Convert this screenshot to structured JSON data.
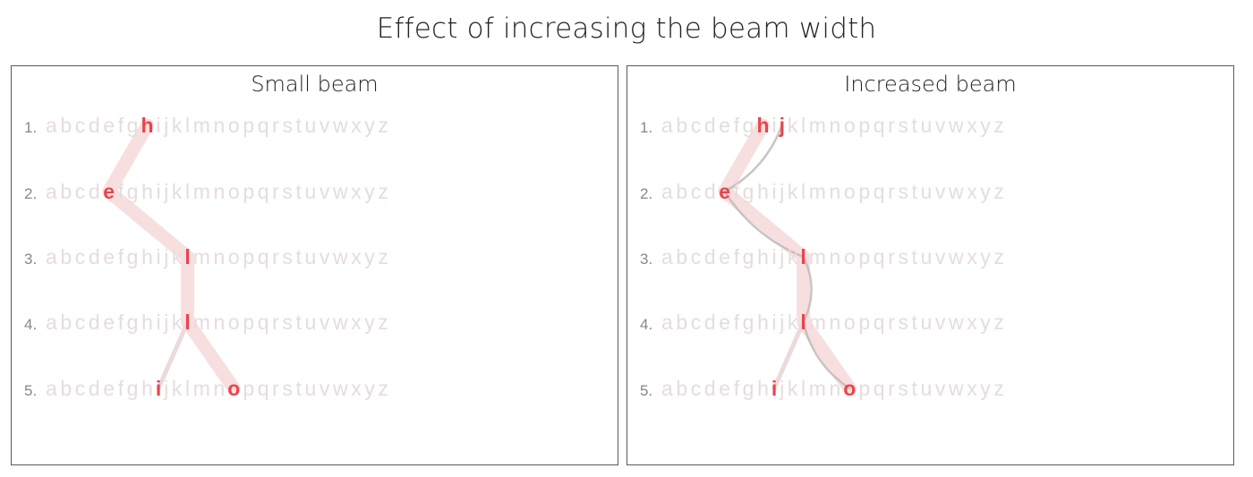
{
  "title": "Effect of increasing the beam width",
  "alphabet": [
    "a",
    "b",
    "c",
    "d",
    "e",
    "f",
    "g",
    "h",
    "i",
    "j",
    "k",
    "l",
    "m",
    "n",
    "o",
    "p",
    "q",
    "r",
    "s",
    "t",
    "u",
    "v",
    "w",
    "x",
    "y",
    "z"
  ],
  "row_labels": [
    "1.",
    "2.",
    "3.",
    "4.",
    "5."
  ],
  "colors": {
    "faded_letter": "#e6dcdd",
    "highlight": "#e8454b",
    "row_label": "#888888",
    "main_path": "#f6d9d9",
    "branch_path": "#ead6d6",
    "gray_path": "#bdb6b6"
  },
  "panels": [
    {
      "id": "small",
      "title": "Small beam",
      "highlighted": [
        [
          "h"
        ],
        [
          "e"
        ],
        [
          "l"
        ],
        [
          "l"
        ],
        [
          "i",
          "o"
        ]
      ],
      "paths": [
        {
          "kind": "main",
          "nodes": [
            [
              0,
              "h"
            ],
            [
              1,
              "e"
            ],
            [
              2,
              "l"
            ],
            [
              3,
              "l"
            ],
            [
              4,
              "o"
            ]
          ]
        },
        {
          "kind": "branch",
          "nodes": [
            [
              3,
              "l"
            ],
            [
              4,
              "i"
            ]
          ]
        }
      ]
    },
    {
      "id": "increased",
      "title": "Increased beam",
      "highlighted": [
        [
          "h",
          "j"
        ],
        [
          "e"
        ],
        [
          "l"
        ],
        [
          "l"
        ],
        [
          "i",
          "o"
        ]
      ],
      "paths": [
        {
          "kind": "main",
          "nodes": [
            [
              0,
              "h"
            ],
            [
              1,
              "e"
            ],
            [
              2,
              "l"
            ],
            [
              3,
              "l"
            ],
            [
              4,
              "o"
            ]
          ]
        },
        {
          "kind": "gray",
          "nodes": [
            [
              0,
              "j"
            ],
            [
              1,
              "e"
            ]
          ]
        },
        {
          "kind": "gray",
          "nodes": [
            [
              1,
              "e"
            ],
            [
              2,
              "l"
            ]
          ]
        },
        {
          "kind": "gray",
          "nodes": [
            [
              2,
              "l"
            ],
            [
              3,
              "l"
            ]
          ]
        },
        {
          "kind": "gray",
          "nodes": [
            [
              3,
              "l"
            ],
            [
              4,
              "o"
            ]
          ]
        },
        {
          "kind": "branch",
          "nodes": [
            [
              3,
              "l"
            ],
            [
              4,
              "i"
            ]
          ]
        }
      ]
    }
  ]
}
